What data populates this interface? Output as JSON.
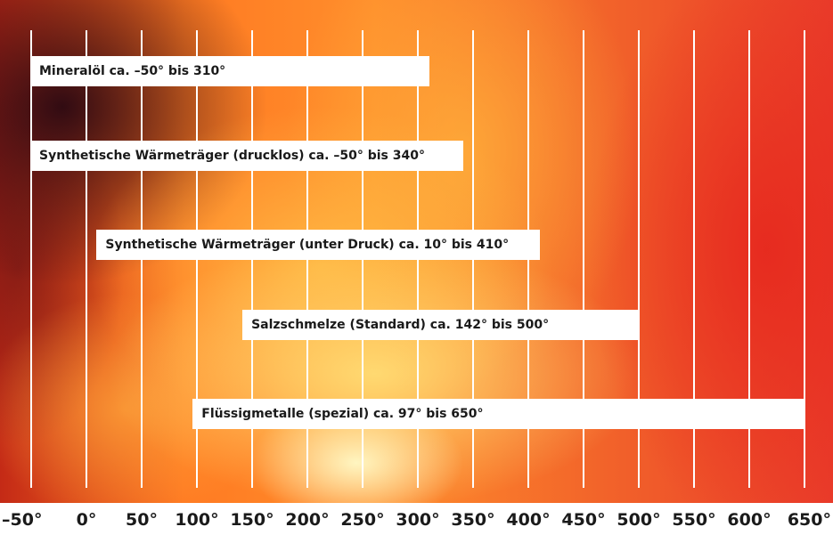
{
  "chart_data": {
    "type": "range-bar",
    "x_unit": "°",
    "xlim": [
      -50,
      650
    ],
    "ticks": [
      "–50°",
      "0°",
      "50°",
      "100°",
      "150°",
      "200°",
      "250°",
      "300°",
      "350°",
      "400°",
      "450°",
      "500°",
      "550°",
      "600°",
      "650°"
    ],
    "tick_values": [
      -50,
      0,
      50,
      100,
      150,
      200,
      250,
      300,
      350,
      400,
      450,
      500,
      550,
      600,
      650
    ],
    "gridlines": true,
    "bars": [
      {
        "label": "Mineralöl ca. –50° bis 310°",
        "start": -50,
        "end": 310
      },
      {
        "label": "Synthetische Wärmeträger (drucklos) ca. –50° bis 340°",
        "start": -50,
        "end": 340
      },
      {
        "label": "Synthetische Wärmeträger (unter Druck) ca. 10° bis 410°",
        "start": 10,
        "end": 410
      },
      {
        "label": "Salzschmelze (Standard) ca. 142° bis 500°",
        "start": 142,
        "end": 500
      },
      {
        "label": "Flüssigmetalle (spezial) ca. 97° bis 650°",
        "start": 97,
        "end": 650
      }
    ]
  }
}
